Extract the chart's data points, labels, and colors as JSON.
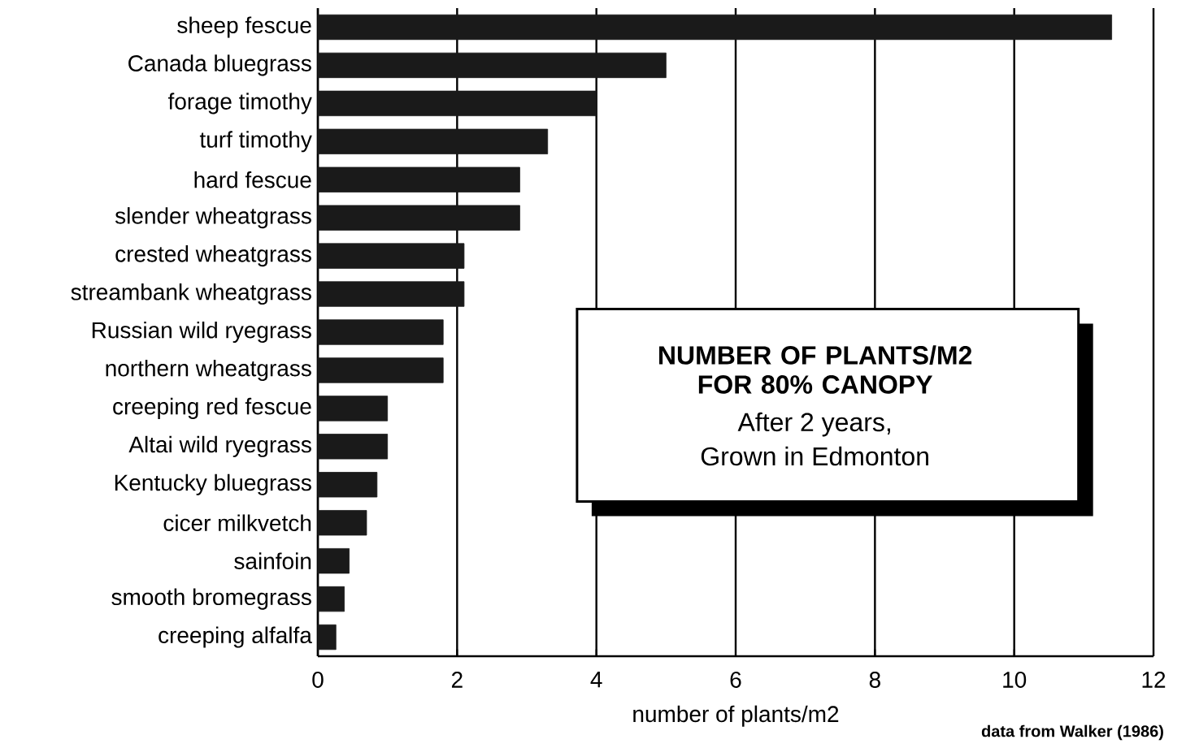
{
  "chart_data": {
    "type": "bar",
    "orientation": "horizontal",
    "title": "NUMBER OF PLANTS/M2 FOR 80% CANOPY",
    "categories": [
      "sheep fescue",
      "Canada bluegrass",
      "forage timothy",
      "turf timothy",
      "hard fescue",
      "slender wheatgrass",
      "crested wheatgrass",
      "streambank wheatgrass",
      "Russian wild ryegrass",
      "northern wheatgrass",
      "creeping red fescue",
      "Altai wild ryegrass",
      "Kentucky bluegrass",
      "cicer milkvetch",
      "sainfoin",
      "smooth bromegrass",
      "creeping alfalfa"
    ],
    "values": [
      11.4,
      5.0,
      4.0,
      3.3,
      2.9,
      2.9,
      2.1,
      2.1,
      1.8,
      1.8,
      1.0,
      1.0,
      0.85,
      0.7,
      0.45,
      0.38,
      0.26
    ],
    "color": "#1a1a1a",
    "xlabel": "number of plants/m2",
    "xlim": [
      0,
      12
    ],
    "xticks": [
      0,
      2,
      4,
      6,
      8,
      10,
      12
    ],
    "grid": "x",
    "annotations": [
      "After 2 years,",
      "Grown in Edmonton",
      "data from Walker (1986)"
    ]
  }
}
